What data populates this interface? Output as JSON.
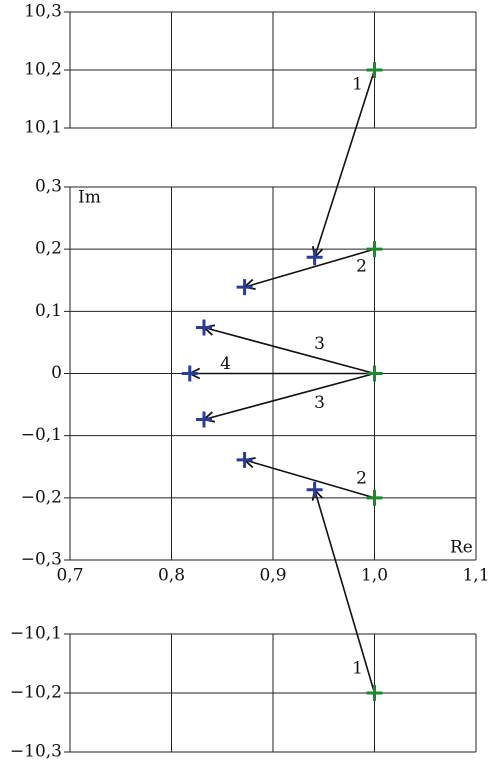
{
  "chart_data": {
    "type": "arrow-scatter",
    "x_label": "Re",
    "y_label": "Im",
    "xlim": [
      0.7,
      1.1
    ],
    "xticks": [
      {
        "value": 0.7,
        "label": "0,7"
      },
      {
        "value": 0.8,
        "label": "0,8"
      },
      {
        "value": 0.9,
        "label": "0,9"
      },
      {
        "value": 1.0,
        "label": "1,0"
      },
      {
        "value": 1.1,
        "label": "1,1"
      }
    ],
    "panels": [
      {
        "ylim": [
          10.1,
          10.3
        ],
        "yticks": [
          {
            "value": 10.1,
            "label": "10,1"
          },
          {
            "value": 10.2,
            "label": "10,2"
          },
          {
            "value": 10.3,
            "label": "10,3"
          }
        ]
      },
      {
        "ylim": [
          -0.3,
          0.3
        ],
        "yticks": [
          {
            "value": -0.3,
            "label": "−0,3"
          },
          {
            "value": -0.2,
            "label": "−0,2"
          },
          {
            "value": -0.1,
            "label": "−0,1"
          },
          0,
          {
            "value": 0.1,
            "label": "0,1"
          },
          {
            "value": 0.2,
            "label": "0,2"
          },
          {
            "value": 0.3,
            "label": "0,3"
          }
        ]
      },
      {
        "ylim": [
          -10.3,
          -10.1
        ],
        "yticks": [
          {
            "value": -10.3,
            "label": "−10,3"
          },
          {
            "value": -10.2,
            "label": "−10,2"
          },
          {
            "value": -10.1,
            "label": "−10,1"
          }
        ]
      }
    ],
    "start_color": "#1a8a2a",
    "end_color": "#2a3c9a",
    "arrow_color": "#111111",
    "arrows": [
      {
        "label": "1",
        "x": [
          1.0,
          0.941
        ],
        "y": [
          10.2,
          0.187
        ]
      },
      {
        "label": "2",
        "x": [
          1.0,
          0.872
        ],
        "y": [
          0.2,
          0.139
        ]
      },
      {
        "label": "3",
        "x": [
          1.0,
          0.832
        ],
        "y": [
          0,
          0.074
        ]
      },
      {
        "label": "4",
        "x": [
          1.0,
          0.818
        ],
        "y": [
          0,
          0
        ]
      },
      {
        "label": "3",
        "x": [
          1.0,
          0.832
        ],
        "y": [
          0,
          -0.074
        ]
      },
      {
        "label": "2",
        "x": [
          1.0,
          0.872
        ],
        "y": [
          -0.2,
          -0.139
        ]
      },
      {
        "label": "1",
        "x": [
          1.0,
          0.941
        ],
        "y": [
          -10.2,
          -0.187
        ]
      }
    ]
  }
}
